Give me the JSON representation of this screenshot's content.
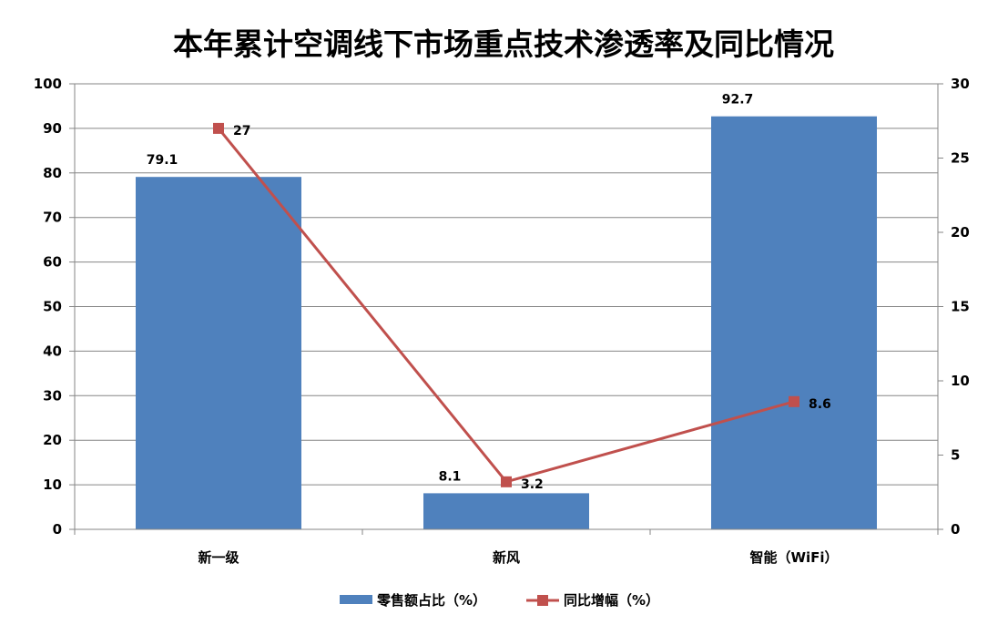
{
  "chart_data": {
    "type": "bar",
    "title": "本年累计空调线下市场重点技术渗透率及同比情况",
    "categories": [
      "新一级",
      "新风",
      "智能（WiFi）"
    ],
    "series": [
      {
        "name": "零售额占比（%）",
        "type": "bar",
        "axis": "left",
        "color": "#4F81BD",
        "values": [
          79.1,
          8.1,
          92.7
        ]
      },
      {
        "name": "同比增幅（%）",
        "type": "line",
        "axis": "right",
        "color": "#C0504D",
        "marker": "square",
        "values": [
          27,
          3.2,
          8.6
        ]
      }
    ],
    "y_left": {
      "min": 0,
      "max": 100,
      "step": 10,
      "ticks": [
        "0",
        "10",
        "20",
        "30",
        "40",
        "50",
        "60",
        "70",
        "80",
        "90",
        "100"
      ]
    },
    "y_right": {
      "min": 0,
      "max": 30,
      "step": 5,
      "ticks": [
        "0",
        "5",
        "10",
        "15",
        "20",
        "25",
        "30"
      ]
    },
    "data_labels": {
      "bar": [
        "79.1",
        "8.1",
        "92.7"
      ],
      "line": [
        "27",
        "3.2",
        "8.6"
      ]
    },
    "grid": true,
    "legend_position": "bottom"
  }
}
